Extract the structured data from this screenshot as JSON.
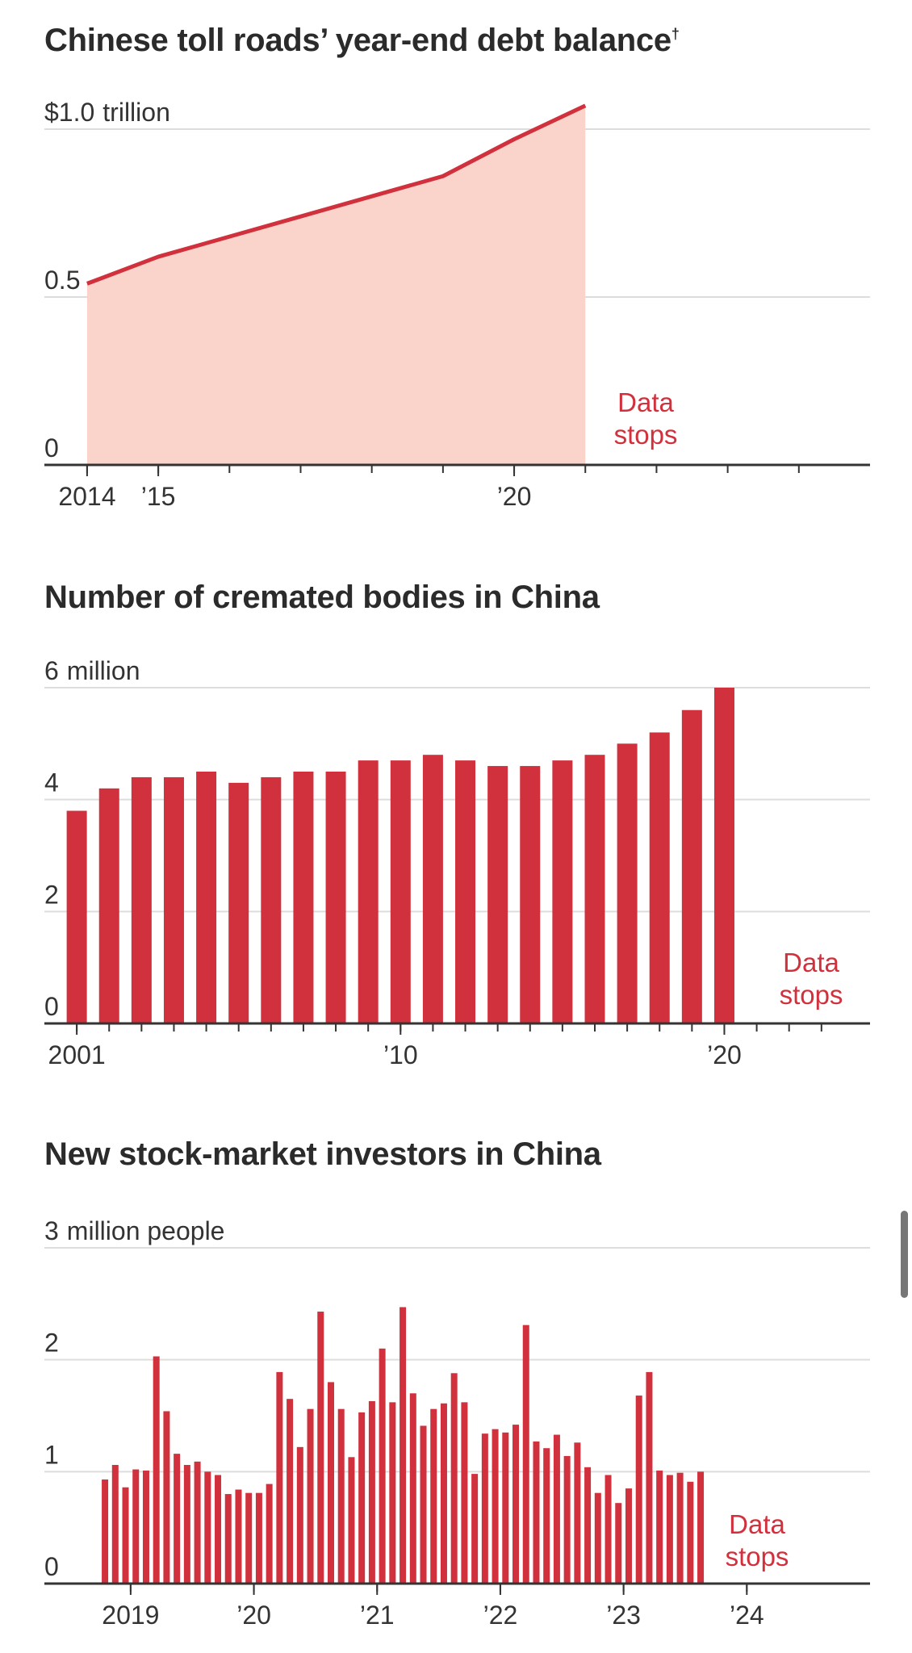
{
  "colors": {
    "accent": "#d1313d",
    "area_fill": "#fad4cb",
    "grid": "#dddddd",
    "axis": "#333333"
  },
  "chart_data": [
    {
      "type": "area",
      "title": "Chinese toll roads’ year-end debt balance",
      "title_mark": "†",
      "ylabel": "",
      "y_unit_label": "trillion",
      "ylim": [
        0,
        1.0
      ],
      "yticks": [
        {
          "value": 0,
          "label": "0"
        },
        {
          "value": 0.5,
          "label": "0.5"
        },
        {
          "value": 1.0,
          "label": "$1.0"
        }
      ],
      "xlim": [
        2013.4,
        2025
      ],
      "xticks": [
        {
          "value": 2014,
          "label": "2014"
        },
        {
          "value": 2015,
          "label": "’15"
        },
        {
          "value": 2020,
          "label": "’20"
        }
      ],
      "x": [
        2014,
        2015,
        2016,
        2017,
        2018,
        2019,
        2020,
        2021
      ],
      "values": [
        0.54,
        0.62,
        0.68,
        0.74,
        0.8,
        0.86,
        0.97,
        1.07
      ],
      "annotation": "Data stops",
      "grid": true
    },
    {
      "type": "bar",
      "title": "Number of cremated bodies in China",
      "ylabel": "",
      "y_unit_label": "million",
      "ylim": [
        0,
        6
      ],
      "yticks": [
        {
          "value": 0,
          "label": "0"
        },
        {
          "value": 2,
          "label": "2"
        },
        {
          "value": 4,
          "label": "4"
        },
        {
          "value": 6,
          "label": "6"
        }
      ],
      "xlim": [
        2000,
        2025.5
      ],
      "xticks": [
        {
          "value": 2001,
          "label": "2001"
        },
        {
          "value": 2011,
          "label": "’10"
        },
        {
          "value": 2021,
          "label": "’20"
        }
      ],
      "x": [
        2001,
        2002,
        2003,
        2004,
        2005,
        2006,
        2007,
        2008,
        2009,
        2010,
        2011,
        2012,
        2013,
        2014,
        2015,
        2016,
        2017,
        2018,
        2019,
        2020,
        2021
      ],
      "values": [
        3.8,
        4.2,
        4.4,
        4.4,
        4.5,
        4.3,
        4.4,
        4.5,
        4.5,
        4.7,
        4.7,
        4.8,
        4.7,
        4.6,
        4.6,
        4.7,
        4.8,
        5.0,
        5.2,
        5.6,
        6.0
      ],
      "annotation": "Data stops",
      "grid": true
    },
    {
      "type": "bar",
      "title": "New stock-market investors in China",
      "ylabel": "",
      "y_unit_label": "million people",
      "ylim": [
        0,
        3
      ],
      "yticks": [
        {
          "value": 0,
          "label": "0"
        },
        {
          "value": 1,
          "label": "1"
        },
        {
          "value": 2,
          "label": "2"
        },
        {
          "value": 3,
          "label": "3"
        }
      ],
      "xlim": [
        2018.3,
        2025
      ],
      "xticks": [
        {
          "value": 2019,
          "label": "2019"
        },
        {
          "value": 2020,
          "label": "’20"
        },
        {
          "value": 2021,
          "label": "’21"
        },
        {
          "value": 2022,
          "label": "’22"
        },
        {
          "value": 2023,
          "label": "’23"
        },
        {
          "value": 2024,
          "label": "’24"
        }
      ],
      "x_start": "2018-10",
      "values": [
        0.93,
        1.06,
        0.86,
        1.02,
        1.01,
        2.03,
        1.54,
        1.16,
        1.06,
        1.09,
        1.0,
        0.97,
        0.8,
        0.84,
        0.81,
        0.81,
        0.89,
        1.89,
        1.65,
        1.22,
        1.56,
        2.43,
        1.8,
        1.56,
        1.13,
        1.53,
        1.63,
        2.1,
        1.62,
        2.47,
        1.7,
        1.41,
        1.56,
        1.61,
        1.88,
        1.62,
        0.98,
        1.34,
        1.38,
        1.35,
        1.42,
        2.31,
        1.27,
        1.21,
        1.33,
        1.14,
        1.26,
        1.04,
        0.81,
        0.97,
        0.72,
        0.85,
        1.68,
        1.89,
        1.01,
        0.97,
        0.99,
        0.91,
        1.0
      ],
      "annotation": "Data stops",
      "grid": true
    }
  ]
}
